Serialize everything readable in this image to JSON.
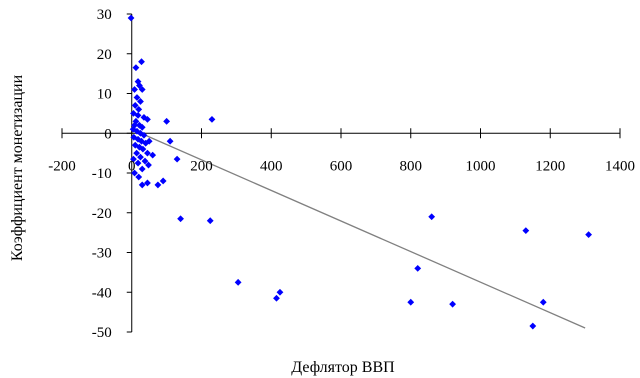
{
  "chart_data": {
    "type": "scatter",
    "title": "",
    "xlabel": "Дефлятор ВВП",
    "ylabel": "Коэффициент монетизации",
    "xlim": [
      -200,
      1400
    ],
    "ylim": [
      -50,
      30
    ],
    "xticks": [
      -200,
      0,
      200,
      400,
      600,
      800,
      1000,
      1200,
      1400
    ],
    "yticks": [
      -50,
      -40,
      -30,
      -20,
      -10,
      0,
      10,
      20,
      30
    ],
    "xtick_labels": [
      "-200",
      "0",
      "200",
      "400",
      "600",
      "800",
      "1000",
      "1200",
      "1400"
    ],
    "ytick_labels": [
      "-50",
      "-40",
      "-30",
      "-20",
      "-10",
      "0",
      "10",
      "20",
      "30"
    ],
    "grid": false,
    "legend": "none",
    "marker_color": "#0000ff",
    "trendline_color": "#808080",
    "trendline": {
      "x": [
        0,
        1300
      ],
      "y": [
        1,
        -49
      ]
    },
    "points": [
      {
        "x": -2,
        "y": 29
      },
      {
        "x": 12,
        "y": 16.5
      },
      {
        "x": 28,
        "y": 18
      },
      {
        "x": 18,
        "y": 13
      },
      {
        "x": 22,
        "y": 12
      },
      {
        "x": 8,
        "y": 11
      },
      {
        "x": 30,
        "y": 11
      },
      {
        "x": 15,
        "y": 9
      },
      {
        "x": 25,
        "y": 8
      },
      {
        "x": 10,
        "y": 7
      },
      {
        "x": 20,
        "y": 6
      },
      {
        "x": 5,
        "y": 5
      },
      {
        "x": 18,
        "y": 4.5
      },
      {
        "x": 35,
        "y": 4
      },
      {
        "x": 12,
        "y": 3
      },
      {
        "x": 45,
        "y": 3.5
      },
      {
        "x": 8,
        "y": 2
      },
      {
        "x": 22,
        "y": 2
      },
      {
        "x": 30,
        "y": 1.5
      },
      {
        "x": 4,
        "y": 1
      },
      {
        "x": 15,
        "y": 0.5
      },
      {
        "x": 25,
        "y": 0
      },
      {
        "x": 35,
        "y": -0.5
      },
      {
        "x": 6,
        "y": -1
      },
      {
        "x": 18,
        "y": -1.5
      },
      {
        "x": 28,
        "y": -2
      },
      {
        "x": 40,
        "y": -2.5
      },
      {
        "x": 10,
        "y": -3
      },
      {
        "x": 22,
        "y": -3.5
      },
      {
        "x": 50,
        "y": -2
      },
      {
        "x": 32,
        "y": -4
      },
      {
        "x": 14,
        "y": -5
      },
      {
        "x": 45,
        "y": -5
      },
      {
        "x": 60,
        "y": -5.5
      },
      {
        "x": 25,
        "y": -6
      },
      {
        "x": 5,
        "y": -6.5
      },
      {
        "x": 38,
        "y": -7
      },
      {
        "x": 18,
        "y": -7.5
      },
      {
        "x": 48,
        "y": -8
      },
      {
        "x": 30,
        "y": -9
      },
      {
        "x": 8,
        "y": -10
      },
      {
        "x": 20,
        "y": -11
      },
      {
        "x": 45,
        "y": -12.5
      },
      {
        "x": 30,
        "y": -13
      },
      {
        "x": 100,
        "y": 3
      },
      {
        "x": 110,
        "y": -2
      },
      {
        "x": 130,
        "y": -6.5
      },
      {
        "x": 90,
        "y": -12
      },
      {
        "x": 75,
        "y": -13
      },
      {
        "x": 230,
        "y": 3.5
      },
      {
        "x": 140,
        "y": -21.5
      },
      {
        "x": 225,
        "y": -22
      },
      {
        "x": 305,
        "y": -37.5
      },
      {
        "x": 415,
        "y": -41.5
      },
      {
        "x": 425,
        "y": -40
      },
      {
        "x": 800,
        "y": -42.5
      },
      {
        "x": 820,
        "y": -34
      },
      {
        "x": 860,
        "y": -21
      },
      {
        "x": 920,
        "y": -43
      },
      {
        "x": 1130,
        "y": -24.5
      },
      {
        "x": 1150,
        "y": -48.5
      },
      {
        "x": 1180,
        "y": -42.5
      },
      {
        "x": 1310,
        "y": -25.5
      }
    ]
  }
}
